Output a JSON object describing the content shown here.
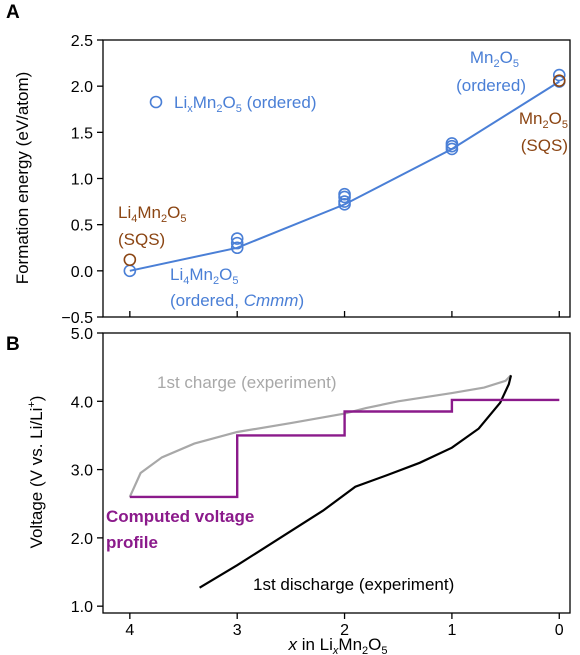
{
  "colors": {
    "dft": "#4a7fd6",
    "sqs": "#8b4513",
    "charge": "#a8a8a8",
    "discharge": "#000000",
    "computed": "#8b1a8b"
  },
  "chart_data": [
    {
      "panel": "A",
      "type": "scatter",
      "ylabel": "Formation energy (eV/atom)",
      "xlim": [
        4.25,
        -0.1
      ],
      "ylim": [
        -0.5,
        2.5
      ],
      "x_reversed": true,
      "yticks": [
        "−0.5",
        "0.0",
        "0.5",
        "1.0",
        "1.5",
        "2.0",
        "2.5"
      ],
      "ytick_values": [
        -0.5,
        0.0,
        0.5,
        1.0,
        1.5,
        2.0,
        2.5
      ],
      "xticks": [
        4,
        3,
        2,
        1,
        0
      ],
      "series": [
        {
          "name": "LixMn2O5 (ordered)",
          "marker": "open-circle",
          "points": [
            [
              4,
              0.0
            ],
            [
              3,
              0.25
            ],
            [
              3,
              0.3
            ],
            [
              3,
              0.35
            ],
            [
              2,
              0.72
            ],
            [
              2,
              0.75
            ],
            [
              2,
              0.8
            ],
            [
              2,
              0.83
            ],
            [
              1,
              1.32
            ],
            [
              1,
              1.35
            ],
            [
              1,
              1.38
            ],
            [
              0,
              2.05
            ],
            [
              0,
              2.12
            ]
          ]
        },
        {
          "name": "SQS",
          "marker": "open-circle",
          "points": [
            [
              4,
              0.12
            ],
            [
              0,
              2.06
            ]
          ]
        },
        {
          "name": "hull",
          "type": "line",
          "points": [
            [
              4,
              0.0
            ],
            [
              3,
              0.25
            ],
            [
              2,
              0.72
            ],
            [
              1,
              1.32
            ],
            [
              0,
              2.05
            ]
          ]
        }
      ],
      "annotations": {
        "legend_prefix": "Li",
        "legend_sub": "x",
        "legend_mid": "Mn",
        "legend_sub2": "2",
        "legend_o": "O",
        "legend_sub3": "5",
        "legend_suffix": " (ordered)",
        "mn2o5_l1_a": "Mn",
        "mn2o5_l1_b": "2",
        "mn2o5_l1_c": "O",
        "mn2o5_l1_d": "5",
        "mn2o5_l2": "(ordered)",
        "mn2o5_sqs_l2": "(SQS)",
        "li4_sqs_a": "Li",
        "li4_sqs_b": "4",
        "li4_sqs_c": "Mn",
        "li4_sqs_d": "2",
        "li4_sqs_e": "O",
        "li4_sqs_f": "5",
        "li4_sqs_l2": "(SQS)",
        "li4_ord_l2_a": "(ordered, ",
        "li4_ord_l2_b": "Cmmm",
        "li4_ord_l2_c": ")"
      }
    },
    {
      "panel": "B",
      "type": "line",
      "ylabel_a": "Voltage (V vs. Li/Li",
      "ylabel_b": "+",
      "ylabel_c": ")",
      "xlabel_a": "x",
      "xlabel_b": "  in Li",
      "xlabel_c": "x",
      "xlabel_d": "Mn",
      "xlabel_e": "2",
      "xlabel_f": "O",
      "xlabel_g": "5",
      "xlim": [
        4.25,
        -0.1
      ],
      "ylim": [
        0.9,
        5.0
      ],
      "yticks": [
        "1.0",
        "2.0",
        "3.0",
        "4.0",
        "5.0"
      ],
      "ytick_values": [
        1.0,
        2.0,
        3.0,
        4.0,
        5.0
      ],
      "xticks": [
        "4",
        "3",
        "2",
        "1",
        "0"
      ],
      "xtick_values": [
        4,
        3,
        2,
        1,
        0
      ],
      "series": [
        {
          "name": "1st charge (experiment)",
          "points": [
            [
              4,
              2.6
            ],
            [
              3.9,
              2.95
            ],
            [
              3.7,
              3.18
            ],
            [
              3.4,
              3.38
            ],
            [
              3.0,
              3.55
            ],
            [
              2.5,
              3.68
            ],
            [
              2.0,
              3.82
            ],
            [
              1.8,
              3.9
            ],
            [
              1.5,
              4.0
            ],
            [
              1.0,
              4.12
            ],
            [
              0.7,
              4.2
            ],
            [
              0.5,
              4.3
            ],
            [
              0.45,
              4.38
            ]
          ]
        },
        {
          "name": "1st discharge (experiment)",
          "points": [
            [
              3.35,
              1.27
            ],
            [
              3.0,
              1.6
            ],
            [
              2.6,
              2.0
            ],
            [
              2.2,
              2.4
            ],
            [
              1.9,
              2.75
            ],
            [
              1.6,
              2.92
            ],
            [
              1.3,
              3.1
            ],
            [
              1.0,
              3.32
            ],
            [
              0.75,
              3.6
            ],
            [
              0.55,
              3.98
            ],
            [
              0.47,
              4.25
            ],
            [
              0.45,
              4.38
            ]
          ]
        },
        {
          "name": "Computed voltage profile",
          "steps": [
            [
              4,
              3,
              2.6
            ],
            [
              3,
              2,
              3.5
            ],
            [
              2,
              1,
              3.85
            ],
            [
              1,
              0,
              4.02
            ]
          ]
        }
      ],
      "annotations": {
        "computed_l1": "Computed voltage",
        "computed_l2": "profile"
      }
    }
  ]
}
